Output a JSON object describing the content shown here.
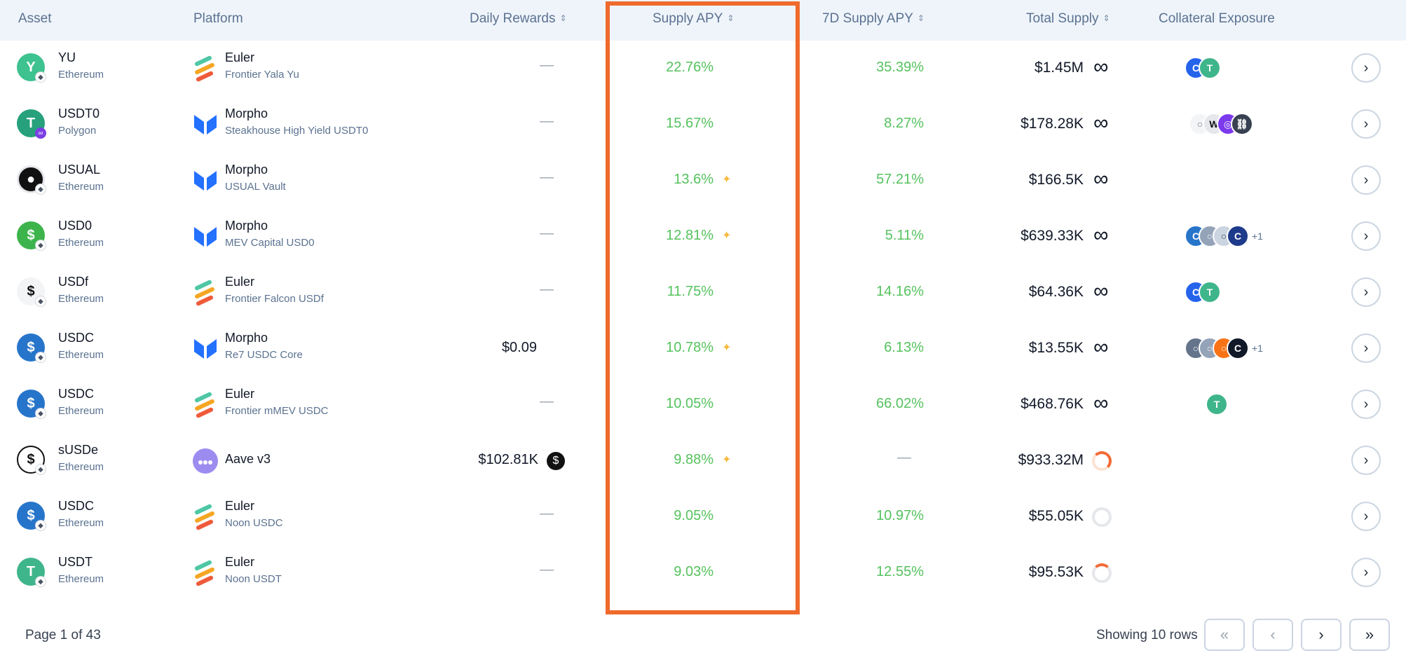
{
  "headers": {
    "asset": "Asset",
    "platform": "Platform",
    "daily_rewards": "Daily Rewards",
    "supply_apy": "Supply APY",
    "supply_apy_7d": "7D Supply APY",
    "total_supply": "Total Supply",
    "collateral": "Collateral Exposure"
  },
  "rows": [
    {
      "asset": "YU",
      "chain": "Ethereum",
      "platform": "Euler",
      "platform_sub": "Frontier Yala Yu",
      "rewards": "—",
      "apy": "22.76%",
      "apy7": "35.39%",
      "supply": "$1.45M",
      "extra": ""
    },
    {
      "asset": "USDT0",
      "chain": "Polygon",
      "platform": "Morpho",
      "platform_sub": "Steakhouse High Yield USDT0",
      "rewards": "—",
      "apy": "15.67%",
      "apy7": "8.27%",
      "supply": "$178.28K",
      "extra": ""
    },
    {
      "asset": "USUAL",
      "chain": "Ethereum",
      "platform": "Morpho",
      "platform_sub": "USUAL Vault",
      "rewards": "—",
      "apy": "13.6%",
      "apy7": "57.21%",
      "supply": "$166.5K",
      "extra": ""
    },
    {
      "asset": "USD0",
      "chain": "Ethereum",
      "platform": "Morpho",
      "platform_sub": "MEV Capital USD0",
      "rewards": "—",
      "apy": "12.81%",
      "apy7": "5.11%",
      "supply": "$639.33K",
      "extra": "+1"
    },
    {
      "asset": "USDf",
      "chain": "Ethereum",
      "platform": "Euler",
      "platform_sub": "Frontier Falcon USDf",
      "rewards": "—",
      "apy": "11.75%",
      "apy7": "14.16%",
      "supply": "$64.36K",
      "extra": ""
    },
    {
      "asset": "USDC",
      "chain": "Ethereum",
      "platform": "Morpho",
      "platform_sub": "Re7 USDC Core",
      "rewards": "$0.09",
      "apy": "10.78%",
      "apy7": "6.13%",
      "supply": "$13.55K",
      "extra": "+1"
    },
    {
      "asset": "USDC",
      "chain": "Ethereum",
      "platform": "Euler",
      "platform_sub": "Frontier mMEV USDC",
      "rewards": "—",
      "apy": "10.05%",
      "apy7": "66.02%",
      "supply": "$468.76K",
      "extra": ""
    },
    {
      "asset": "sUSDe",
      "chain": "Ethereum",
      "platform": "Aave v3",
      "platform_sub": "",
      "rewards": "$102.81K",
      "apy": "9.88%",
      "apy7": "—",
      "supply": "$933.32M",
      "extra": ""
    },
    {
      "asset": "USDC",
      "chain": "Ethereum",
      "platform": "Euler",
      "platform_sub": "Noon USDC",
      "rewards": "—",
      "apy": "9.05%",
      "apy7": "10.97%",
      "supply": "$55.05K",
      "extra": ""
    },
    {
      "asset": "USDT",
      "chain": "Ethereum",
      "platform": "Euler",
      "platform_sub": "Noon USDT",
      "rewards": "—",
      "apy": "9.03%",
      "apy7": "12.55%",
      "supply": "$95.53K",
      "extra": ""
    }
  ],
  "footer": {
    "page": "Page 1 of 43",
    "showing": "Showing 10 rows"
  },
  "colors": {
    "accent_highlight": "#ef6a2c",
    "apy_green": "#55c25e",
    "header_bg": "#eff4fb"
  }
}
